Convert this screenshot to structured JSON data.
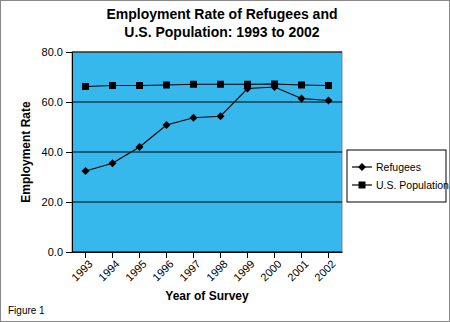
{
  "chart_data": {
    "type": "line",
    "title": "Employment Rate of Refugees and\nU.S. Population: 1993 to 2002",
    "x_label": "Year of Survey",
    "y_label": "Employment Rate",
    "annotation": "Figure 1",
    "categories": [
      "1993",
      "1994",
      "1995",
      "1996",
      "1997",
      "1998",
      "1999",
      "2000",
      "2001",
      "2002"
    ],
    "series": [
      {
        "name": "Refugees",
        "color": "#000000",
        "marker": "diamond",
        "line_style": "solid",
        "values": [
          32.4,
          35.5,
          42.0,
          50.8,
          53.7,
          54.3,
          65.4,
          66.0,
          61.4,
          60.6
        ]
      },
      {
        "name": "U.S. Population",
        "color": "#000000",
        "marker": "square",
        "line_style": "solid",
        "values": [
          66.2,
          66.6,
          66.6,
          66.8,
          67.1,
          67.1,
          67.1,
          67.2,
          66.8,
          66.6
        ]
      }
    ],
    "ylim": [
      0,
      80
    ],
    "yticks": [
      {
        "value": 0,
        "label": "0.0"
      },
      {
        "value": 20,
        "label": "20.0"
      },
      {
        "value": 40,
        "label": "40.0"
      },
      {
        "value": 60,
        "label": "60.0"
      },
      {
        "value": 80,
        "label": "80.0"
      }
    ],
    "grid": true,
    "legend": "right"
  }
}
